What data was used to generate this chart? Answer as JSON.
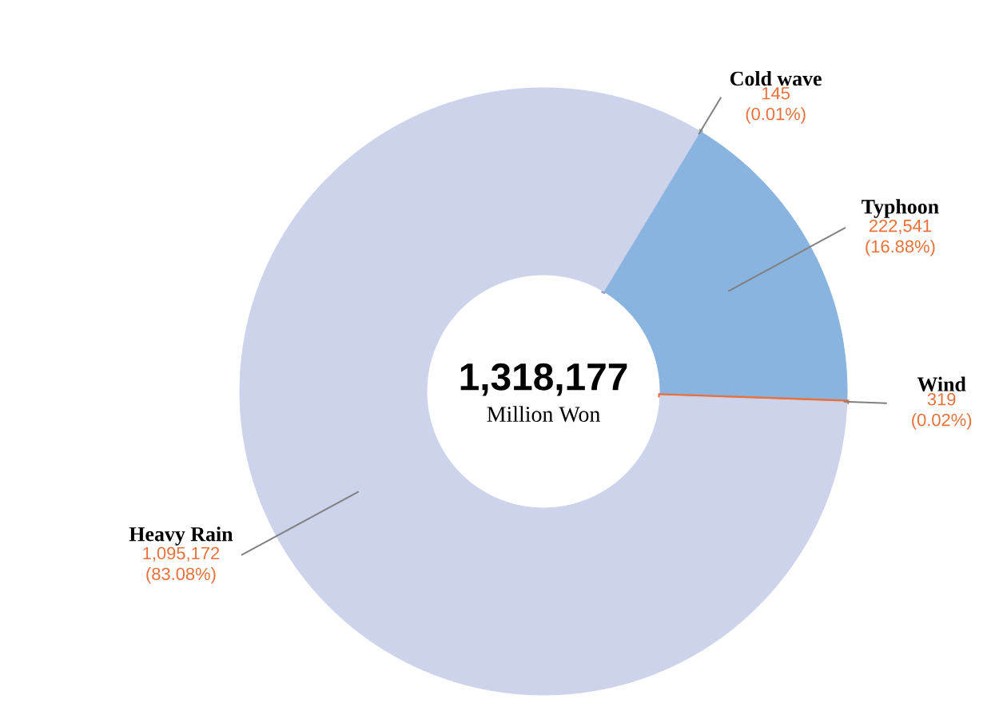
{
  "chart_data": {
    "type": "donut",
    "categories": [
      "Cold wave",
      "Typhoon",
      "Wind",
      "Heavy Rain"
    ],
    "values": [
      145,
      222541,
      319,
      1095172
    ],
    "colors": [
      "#9a9cc0",
      "#8ab4e0",
      "#e8703a",
      "#cdd3ea"
    ],
    "value_labels": [
      "145 (0.01%)",
      "222,541 (16.88%)",
      "319 (0.02%)",
      "1,095,172 (83.08%)"
    ],
    "annotations": [
      "1,318,177",
      "Million Won"
    ],
    "legend": false
  }
}
